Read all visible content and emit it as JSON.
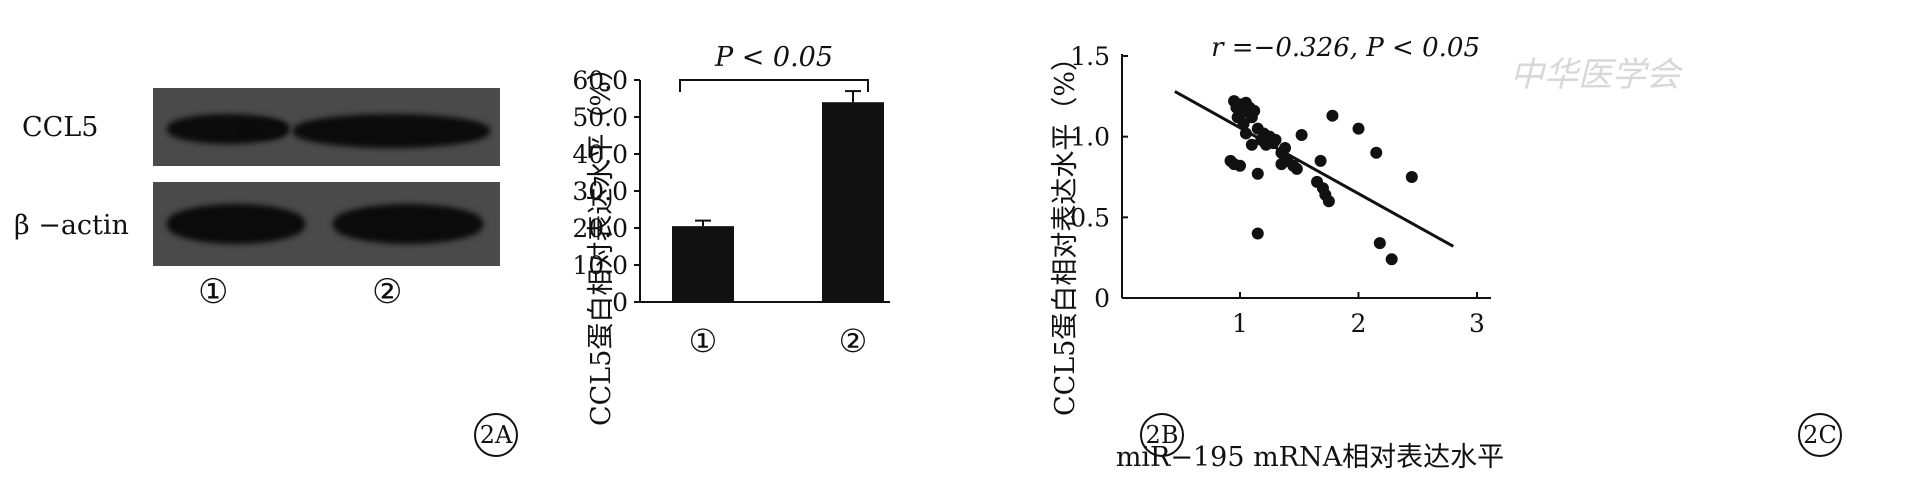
{
  "panelA": {
    "tag": "2A",
    "band_labels": [
      "CCL5",
      "β −actin"
    ],
    "lanes": [
      "①",
      "②"
    ]
  },
  "panelB": {
    "tag": "2B"
  },
  "panelC": {
    "tag": "2C"
  },
  "watermark": "中华医学会",
  "chart_data": [
    {
      "type": "bar",
      "categories": [
        "①",
        "②"
      ],
      "values": [
        20.5,
        54.0
      ],
      "errors": [
        1.5,
        3.0
      ],
      "ylabel": "CCL5蛋白相对表达水平（%）",
      "ylim": [
        0,
        60
      ],
      "yticks": [
        "0",
        "10.0",
        "20.0",
        "30.0",
        "40.0",
        "50.0",
        "60.0"
      ],
      "annotation": "P < 0.05",
      "bar_color": "#111111"
    },
    {
      "type": "scatter",
      "xlabel": "miR−195 mRNA相对表达水平",
      "ylabel": "CCL5蛋白相对表达水平（%）",
      "xlim": [
        0,
        3
      ],
      "ylim": [
        0,
        1.5
      ],
      "xticks": [
        "1",
        "2",
        "3"
      ],
      "yticks": [
        "0",
        "0.5",
        "1.0",
        "1.5"
      ],
      "annotation": "r =−0.326, P < 0.05",
      "trendline": {
        "x": [
          0.45,
          2.8
        ],
        "y": [
          1.28,
          0.32
        ]
      },
      "points": [
        [
          0.95,
          1.22
        ],
        [
          0.97,
          1.18
        ],
        [
          1.0,
          1.2
        ],
        [
          1.02,
          1.15
        ],
        [
          1.05,
          1.21
        ],
        [
          1.08,
          1.18
        ],
        [
          1.1,
          1.12
        ],
        [
          1.12,
          1.16
        ],
        [
          0.98,
          1.12
        ],
        [
          1.03,
          1.08
        ],
        [
          1.15,
          1.05
        ],
        [
          1.2,
          1.02
        ],
        [
          1.25,
          1.0
        ],
        [
          1.18,
          0.98
        ],
        [
          1.22,
          0.95
        ],
        [
          1.28,
          0.96
        ],
        [
          1.3,
          0.98
        ],
        [
          1.35,
          0.9
        ],
        [
          1.38,
          0.93
        ],
        [
          1.4,
          0.85
        ],
        [
          1.45,
          0.82
        ],
        [
          1.48,
          0.8
        ],
        [
          1.52,
          1.01
        ],
        [
          1.1,
          0.95
        ],
        [
          1.05,
          1.02
        ],
        [
          0.92,
          0.85
        ],
        [
          0.95,
          0.83
        ],
        [
          1.0,
          0.82
        ],
        [
          1.15,
          0.77
        ],
        [
          1.35,
          0.83
        ],
        [
          1.65,
          0.72
        ],
        [
          1.7,
          0.68
        ],
        [
          1.72,
          0.64
        ],
        [
          1.75,
          0.6
        ],
        [
          1.68,
          0.85
        ],
        [
          1.78,
          1.13
        ],
        [
          2.0,
          1.05
        ],
        [
          2.15,
          0.9
        ],
        [
          2.45,
          0.75
        ],
        [
          2.18,
          0.34
        ],
        [
          2.28,
          0.24
        ],
        [
          1.15,
          0.4
        ]
      ]
    }
  ]
}
